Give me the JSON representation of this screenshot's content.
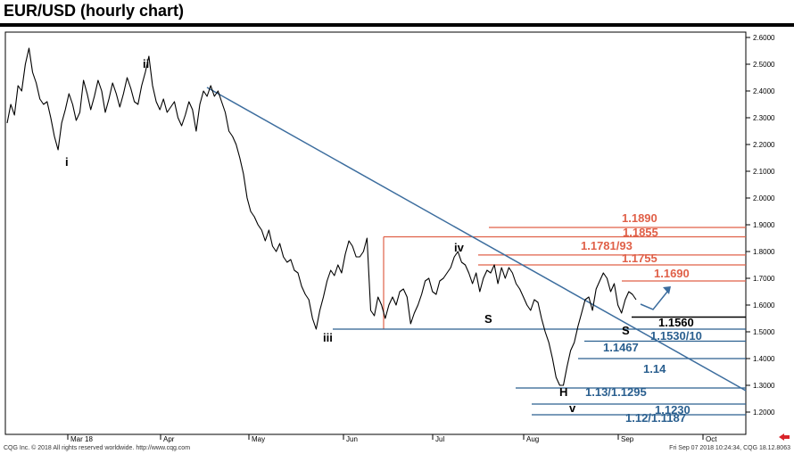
{
  "header": {
    "title": "EUR/USD (hourly chart)"
  },
  "footer": {
    "left_text": "CQG Inc. © 2018 All rights reserved worldwide. http://www.cqg.com",
    "right_text": "Fri Sep 07 2018 10:24:34, CQG 18.12.8063"
  },
  "colors": {
    "price": "#000000",
    "trendline": "#3c6d9e",
    "resistance": "#e06048",
    "support": "#2a5f8f",
    "pivot": "#000000"
  },
  "chart_data": {
    "type": "line",
    "title": "EUR/USD (hourly chart)",
    "xlabel": "",
    "ylabel": "",
    "ylim": [
      1.17,
      2.61
    ],
    "x_tick_labels": [
      "Mar 18",
      "Apr",
      "May",
      "Jun",
      "Jul",
      "Aug",
      "Sep",
      "Oct"
    ],
    "y_ticks": [
      1.2,
      1.3,
      1.4,
      1.5,
      1.6,
      1.7,
      1.8,
      1.9,
      2.0,
      2.1,
      2.2,
      2.3,
      2.4,
      2.5,
      2.6
    ],
    "y_tick_labels": [
      "1.2000",
      "1.3000",
      "1.4000",
      "1.5000",
      "1.6000",
      "1.7000",
      "1.8000",
      "1.9000",
      "2.0000",
      "2.1000",
      "2.2000",
      "2.3000",
      "2.4000",
      "2.5000",
      "2.6000"
    ],
    "grid": false,
    "series": [
      {
        "values": [
          2.28,
          2.35,
          2.31,
          2.42,
          2.4,
          2.5,
          2.56,
          2.47,
          2.43,
          2.37,
          2.35,
          2.36,
          2.3,
          2.23,
          2.18,
          2.28,
          2.33,
          2.39,
          2.35,
          2.29,
          2.32,
          2.44,
          2.39,
          2.33,
          2.38,
          2.44,
          2.4,
          2.32,
          2.37,
          2.43,
          2.39,
          2.34,
          2.39,
          2.45,
          2.41,
          2.36,
          2.35,
          2.42,
          2.47,
          2.53,
          2.42,
          2.36,
          2.33,
          2.37,
          2.32,
          2.34,
          2.36,
          2.3,
          2.27,
          2.31,
          2.36,
          2.33,
          2.25,
          2.35,
          2.4,
          2.38,
          2.42,
          2.38,
          2.4,
          2.36,
          2.32,
          2.25,
          2.23,
          2.2,
          2.15,
          2.09,
          2.0,
          1.95,
          1.93,
          1.9,
          1.88,
          1.84,
          1.88,
          1.82,
          1.8,
          1.83,
          1.78,
          1.76,
          1.77,
          1.73,
          1.72,
          1.67,
          1.64,
          1.62,
          1.55,
          1.51,
          1.58,
          1.63,
          1.69,
          1.73,
          1.71,
          1.75,
          1.72,
          1.79,
          1.84,
          1.82,
          1.78,
          1.78,
          1.8,
          1.85,
          1.58,
          1.56,
          1.63,
          1.6,
          1.55,
          1.6,
          1.63,
          1.6,
          1.65,
          1.66,
          1.63,
          1.53,
          1.57,
          1.6,
          1.64,
          1.69,
          1.7,
          1.65,
          1.64,
          1.69,
          1.7,
          1.72,
          1.74,
          1.78,
          1.8,
          1.76,
          1.75,
          1.72,
          1.68,
          1.72,
          1.65,
          1.7,
          1.73,
          1.72,
          1.75,
          1.68,
          1.74,
          1.7,
          1.74,
          1.72,
          1.68,
          1.66,
          1.63,
          1.6,
          1.58,
          1.62,
          1.61,
          1.55,
          1.5,
          1.46,
          1.4,
          1.33,
          1.3,
          1.3,
          1.37,
          1.43,
          1.46,
          1.52,
          1.57,
          1.62,
          1.63,
          1.58,
          1.66,
          1.69,
          1.72,
          1.7,
          1.65,
          1.68,
          1.6,
          1.57,
          1.62,
          1.65,
          1.64,
          1.62
        ]
      }
    ],
    "wave_labels": [
      "i",
      "ii",
      "iii",
      "iv",
      "v",
      "S",
      "H",
      "S"
    ],
    "resistance_levels": [
      {
        "label": "1.1890",
        "value": 1.89
      },
      {
        "label": "1.1855",
        "value": 1.855
      },
      {
        "label": "1.1781/93",
        "value": 1.787
      },
      {
        "label": "1.1755",
        "value": 1.75
      },
      {
        "label": "1.1690",
        "value": 1.69
      }
    ],
    "pivot_level": {
      "label": "1.1560",
      "value": 1.555
    },
    "support_levels": [
      {
        "label": "1.1530/10",
        "value": 1.51
      },
      {
        "label": "1.1467",
        "value": 1.465
      },
      {
        "label": "1.14",
        "value": 1.4
      },
      {
        "label": "1.13/1.1295",
        "value": 1.29
      },
      {
        "label": "1.1230",
        "value": 1.23
      },
      {
        "label": "1.12/1.1187",
        "value": 1.19
      }
    ]
  }
}
